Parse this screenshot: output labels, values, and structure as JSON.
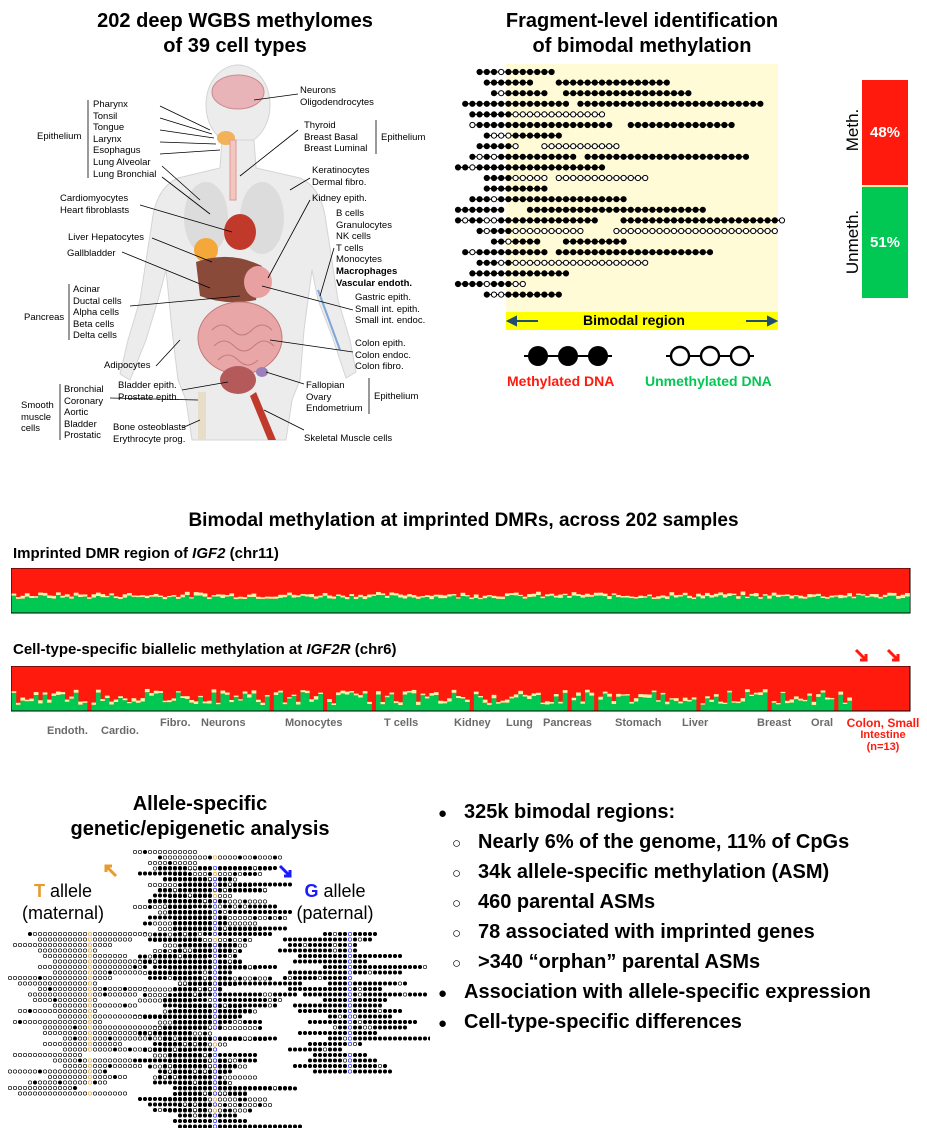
{
  "panel_a": {
    "title_line1": "202 deep WGBS methylomes",
    "title_line2": "of 39 cell types",
    "labels_left": [
      [
        "Pharynx",
        "Tonsil",
        "Tongue",
        "Larynx",
        "Esophagus",
        "Lung Alveolar",
        "Lung Bronchial"
      ],
      [
        "Cardiomyocytes",
        "Heart fibroblasts"
      ],
      [
        "Liver Hepatocytes"
      ],
      [
        "Gallbladder"
      ],
      [
        "Acinar",
        "Ductal cells",
        "Alpha cells",
        "Beta cells",
        "Delta cells"
      ],
      [
        "Adipocytes"
      ],
      [
        "Bronchial",
        "Coronary",
        "Aortic",
        "Bladder",
        "Prostatic"
      ],
      [
        "Bladder epith.",
        "Prostate epith."
      ],
      [
        "Bone osteoblasts",
        "Erythrocyte prog."
      ]
    ],
    "group_epithelium": "Epithelium",
    "group_pancreas": "Pancreas",
    "group_smooth": [
      "Smooth",
      "muscle",
      "cells"
    ],
    "labels_right": [
      [
        "Neurons",
        "Oligodendrocytes"
      ],
      [
        "Thyroid",
        "Breast Basal",
        "Breast Luminal"
      ],
      [
        "Keratinocytes",
        "Dermal fibro."
      ],
      [
        "Kidney epith."
      ],
      [
        "B cells",
        "Granulocytes",
        "NK cells",
        "T cells",
        "Monocytes"
      ],
      [
        "Gastric epith.",
        "Small int. epith.",
        "Small int. endoc."
      ],
      [
        "Colon epith.",
        "Colon endoc.",
        "Colon fibro."
      ],
      [
        "Fallopian",
        "Ovary",
        "Endometrium"
      ],
      [
        "Skeletal Muscle cells"
      ]
    ],
    "labels_right_bold": [
      "Macrophages",
      "Vascular endoth."
    ],
    "group_epithelium_right1": "Epithelium",
    "group_epithelium_right2": "Epithelium"
  },
  "panel_b": {
    "title_line1": "Fragment-level identification",
    "title_line2": "of bimodal methylation",
    "region_label": "Bimodal region",
    "meth_pct": "48%",
    "unmeth_pct": "51%",
    "meth_axis": "Meth.",
    "unmeth_axis": "Unmeth.",
    "legend_meth": "Methylated DNA",
    "legend_unmeth": "Unmethylated DNA",
    "colors": {
      "meth": "#ff1a0d",
      "unmeth": "#00c853",
      "mid": "#fff2a8",
      "region_bg": "#fffbd6",
      "region_bar": "#ffff00"
    }
  },
  "panel_c": {
    "title": "Bimodal methylation at imprinted DMRs, across 202 samples",
    "igf2_prefix": "Imprinted DMR region of ",
    "igf2_gene": "IGF2",
    "igf2_suffix": " (chr11)",
    "igf2r_prefix": "Cell-type-specific biallelic methylation at ",
    "igf2r_gene": "IGF2R",
    "igf2r_suffix": " (chr6)",
    "tissues_row1": [
      "Fibro.",
      "Neurons",
      "Monocytes",
      "T cells",
      "Kidney",
      "Lung",
      "Pancreas",
      "Stomach",
      "Liver",
      "Breast",
      "Oral"
    ],
    "tissues_row2": [
      "Endoth.",
      "Cardio."
    ],
    "colon_label": [
      "Colon, Small",
      "Intestine",
      "(n=13)"
    ]
  },
  "panel_d": {
    "title_line1": "Allele-specific",
    "title_line2": "genetic/epigenetic analysis",
    "t_letter": "T",
    "t_rest": " allele",
    "t_sub": "(maternal)",
    "g_letter": "G",
    "g_rest": " allele",
    "g_sub": "(paternal)",
    "colors": {
      "t": "#e89a2c",
      "g": "#1a1aff"
    }
  },
  "summary": {
    "bullets": [
      {
        "level": 1,
        "text": "325k bimodal regions:"
      },
      {
        "level": 2,
        "text": "Nearly 6% of the genome, 11% of CpGs"
      },
      {
        "level": 2,
        "text": "34k allele-specific methylation (ASM)"
      },
      {
        "level": 2,
        "text": "460 parental ASMs"
      },
      {
        "level": 2,
        "text": "78 associated with imprinted genes"
      },
      {
        "level": 2,
        "text": ">340 “orphan” parental ASMs"
      },
      {
        "level": 1,
        "text": "Association with allele-specific expression"
      },
      {
        "level": 1,
        "text": "Cell-type-specific differences"
      }
    ],
    "bullet_l1": "●",
    "bullet_l2": "○"
  }
}
